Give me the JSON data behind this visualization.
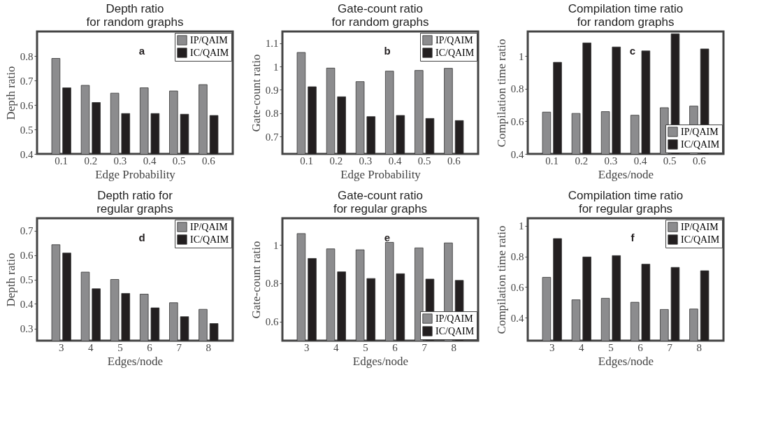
{
  "chart_data": [
    {
      "type": "bar",
      "title": "Depth ratio\nfor random graphs",
      "xlabel": "Edge Probability",
      "ylabel": "Depth ratio",
      "categories": [
        "0.1",
        "0.2",
        "0.3",
        "0.4",
        "0.5",
        "0.6"
      ],
      "ylim": [
        0.4,
        0.9
      ],
      "yticks": [
        0.4,
        0.5,
        0.6,
        0.7,
        0.8
      ],
      "legend": "top right",
      "annotations": [
        "a"
      ],
      "series": [
        {
          "name": "IP/QAIM",
          "color": "#8c8c8e",
          "values": [
            0.79,
            0.68,
            0.648,
            0.67,
            0.657,
            0.683
          ]
        },
        {
          "name": "IC/QAIM",
          "color": "#231f20",
          "values": [
            0.67,
            0.61,
            0.565,
            0.565,
            0.562,
            0.557
          ]
        }
      ]
    },
    {
      "type": "bar",
      "title": "Gate-count ratio\nfor random graphs",
      "xlabel": "Edge Probability",
      "ylabel": "Gate-count ratio",
      "categories": [
        "0.1",
        "0.2",
        "0.3",
        "0.4",
        "0.5",
        "0.6"
      ],
      "ylim": [
        0.625,
        1.15
      ],
      "yticks": [
        0.7,
        0.8,
        0.9,
        1,
        1.1
      ],
      "legend": "top right",
      "annotations": [
        "b"
      ],
      "series": [
        {
          "name": "IP/QAIM",
          "color": "#8c8c8e",
          "values": [
            1.06,
            0.993,
            0.935,
            0.98,
            0.983,
            0.992
          ]
        },
        {
          "name": "IC/QAIM",
          "color": "#231f20",
          "values": [
            0.913,
            0.87,
            0.785,
            0.79,
            0.777,
            0.768
          ]
        }
      ]
    },
    {
      "type": "bar",
      "title": "Compilation time ratio\nfor random graphs",
      "xlabel": "Edges/node",
      "ylabel": "Compilation time ratio",
      "categories": [
        "0.1",
        "0.2",
        "0.3",
        "0.4",
        "0.5",
        "0.6"
      ],
      "ylim": [
        0.4,
        1.15
      ],
      "yticks": [
        0.4,
        0.6,
        0.8,
        1
      ],
      "legend": "bottom right",
      "annotations": [
        "c"
      ],
      "series": [
        {
          "name": "IP/QAIM",
          "color": "#8c8c8e",
          "values": [
            0.656,
            0.648,
            0.659,
            0.637,
            0.683,
            0.693
          ]
        },
        {
          "name": "IC/QAIM",
          "color": "#231f20",
          "values": [
            0.961,
            1.08,
            1.055,
            1.031,
            1.136,
            1.043
          ]
        }
      ]
    },
    {
      "type": "bar",
      "title": "Depth ratio for\nregular graphs",
      "xlabel": "Edges/node",
      "ylabel": "Depth ratio",
      "categories": [
        "3",
        "4",
        "5",
        "6",
        "7",
        "8"
      ],
      "ylim": [
        0.25,
        0.75
      ],
      "yticks": [
        0.3,
        0.4,
        0.5,
        0.6,
        0.7
      ],
      "legend": "top right",
      "annotations": [
        "d"
      ],
      "series": [
        {
          "name": "IP/QAIM",
          "color": "#8c8c8e",
          "values": [
            0.642,
            0.53,
            0.5,
            0.44,
            0.405,
            0.378
          ]
        },
        {
          "name": "IC/QAIM",
          "color": "#231f20",
          "values": [
            0.608,
            0.462,
            0.443,
            0.384,
            0.348,
            0.32
          ]
        }
      ]
    },
    {
      "type": "bar",
      "title": "Gate-count ratio\nfor regular graphs",
      "xlabel": "Edges/node",
      "ylabel": "Gate-count ratio",
      "categories": [
        "3",
        "4",
        "5",
        "6",
        "7",
        "8"
      ],
      "ylim": [
        0.5,
        1.14
      ],
      "yticks": [
        0.6,
        0.8,
        1
      ],
      "legend": "bottom right",
      "annotations": [
        "e"
      ],
      "series": [
        {
          "name": "IP/QAIM",
          "color": "#8c8c8e",
          "values": [
            1.06,
            0.98,
            0.975,
            1.014,
            0.985,
            1.011
          ]
        },
        {
          "name": "IC/QAIM",
          "color": "#231f20",
          "values": [
            0.93,
            0.86,
            0.825,
            0.85,
            0.822,
            0.815
          ]
        }
      ]
    },
    {
      "type": "bar",
      "title": "Compilation time ratio\nfor regular graphs",
      "xlabel": "Edges/node",
      "ylabel": "Compilation time ratio",
      "categories": [
        "3",
        "4",
        "5",
        "6",
        "7",
        "8"
      ],
      "ylim": [
        0.25,
        1.05
      ],
      "yticks": [
        0.4,
        0.6,
        0.8,
        1
      ],
      "legend": "top right",
      "annotations": [
        "f"
      ],
      "series": [
        {
          "name": "IP/QAIM",
          "color": "#8c8c8e",
          "values": [
            0.664,
            0.517,
            0.527,
            0.501,
            0.454,
            0.457
          ]
        },
        {
          "name": "IC/QAIM",
          "color": "#231f20",
          "values": [
            0.917,
            0.797,
            0.806,
            0.75,
            0.729,
            0.707
          ]
        }
      ]
    }
  ]
}
